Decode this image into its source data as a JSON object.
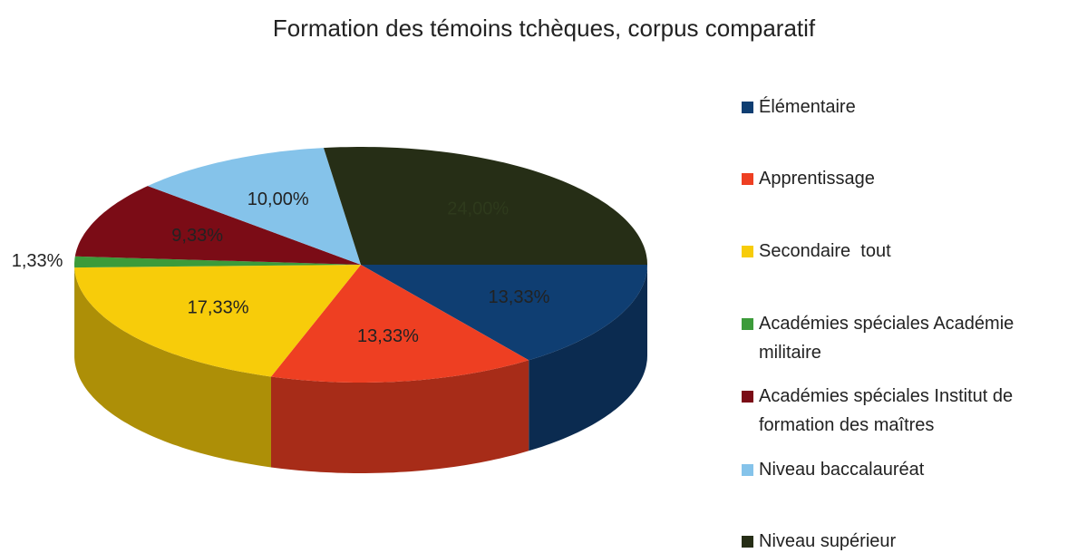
{
  "chart_data": {
    "type": "pie3d",
    "title": "Formation des témoins tchèques, corpus comparatif",
    "categories": [
      "Élémentaire",
      "Apprentissage",
      "Secondaire  tout",
      "Académies spéciales Académie militaire",
      "Académies spéciales Institut de formation des maîtres",
      "Niveau baccalauréat",
      "Niveau supérieur"
    ],
    "values": [
      13.33,
      13.33,
      17.33,
      1.33,
      9.33,
      10.0,
      24.0
    ],
    "value_labels": [
      "13,33%",
      "13,33%",
      "17,33%",
      "1,33%",
      "9,33%",
      "10,00%",
      "24,00%"
    ],
    "colors": [
      "#0f3e72",
      "#ee3f22",
      "#f7cc0a",
      "#3c9b3a",
      "#7b0c16",
      "#85c3ea",
      "#262e16"
    ],
    "legend": "right"
  }
}
